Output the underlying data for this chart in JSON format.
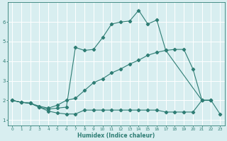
{
  "xlabel": "Humidex (Indice chaleur)",
  "bg_color": "#d8eef0",
  "grid_color": "#c8e0e3",
  "line_color": "#2e7d74",
  "xlim": [
    -0.5,
    23.5
  ],
  "ylim": [
    0.7,
    7.0
  ],
  "xticks": [
    0,
    1,
    2,
    3,
    4,
    5,
    6,
    7,
    8,
    9,
    10,
    11,
    12,
    13,
    14,
    15,
    16,
    17,
    18,
    19,
    20,
    21,
    22,
    23
  ],
  "yticks": [
    1,
    2,
    3,
    4,
    5,
    6
  ],
  "line1_x": [
    0,
    1,
    2,
    3,
    4,
    5,
    6,
    7,
    8,
    9,
    10,
    11,
    12,
    13,
    14,
    15,
    16,
    17,
    18,
    19,
    20,
    21,
    22,
    23
  ],
  "line1_y": [
    2.0,
    1.9,
    1.85,
    1.65,
    1.45,
    1.35,
    1.3,
    1.3,
    1.5,
    1.5,
    1.5,
    1.5,
    1.5,
    1.5,
    1.5,
    1.5,
    1.5,
    1.4,
    1.4,
    1.4,
    1.4,
    2.0,
    2.0,
    1.3
  ],
  "line2_x": [
    0,
    1,
    2,
    3,
    4,
    5,
    6,
    7,
    8,
    9,
    10,
    11,
    12,
    13,
    14,
    15,
    16,
    17,
    18,
    19,
    20,
    21,
    22
  ],
  "line2_y": [
    2.0,
    1.9,
    1.85,
    1.7,
    1.6,
    1.75,
    2.0,
    2.1,
    2.5,
    2.9,
    3.1,
    3.4,
    3.6,
    3.85,
    4.05,
    4.3,
    4.45,
    4.55,
    4.6,
    4.6,
    3.6,
    2.0,
    2.0
  ],
  "line3_x": [
    0,
    1,
    2,
    3,
    4,
    5,
    6,
    7,
    8,
    9,
    10,
    11,
    12,
    13,
    14,
    15,
    16,
    17,
    21,
    22
  ],
  "line3_y": [
    2.0,
    1.9,
    1.85,
    1.65,
    1.55,
    1.6,
    1.65,
    4.7,
    4.55,
    4.6,
    5.2,
    5.9,
    6.0,
    6.05,
    6.6,
    5.9,
    6.1,
    4.55,
    2.0,
    2.0
  ]
}
